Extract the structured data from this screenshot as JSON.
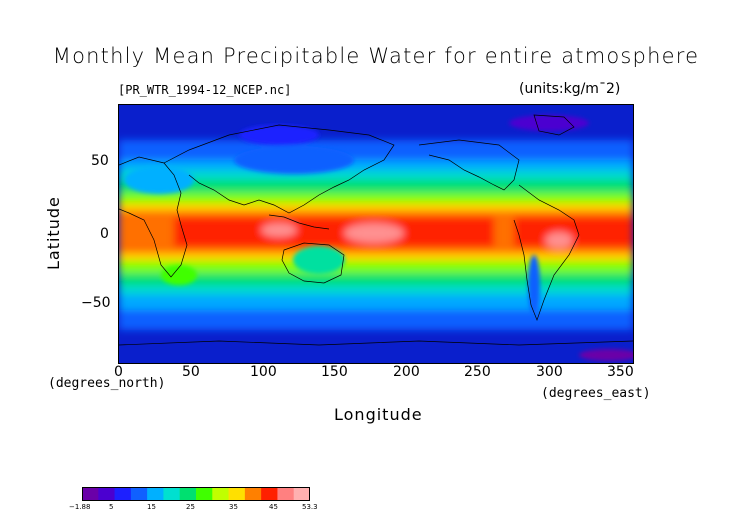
{
  "title": "Monthly Mean Precipitable Water for entire atmosphere",
  "file_label": "[PR_WTR_1994-12_NCEP.nc]",
  "units_label": "(units:kg/m¯2)",
  "axes": {
    "xlabel": "Longitude",
    "ylabel": "Latitude",
    "x_unit_label": "(degrees_east)",
    "y_unit_label": "(degrees_north)",
    "x_ticks": [
      "0",
      "50",
      "100",
      "150",
      "200",
      "250",
      "300",
      "350"
    ],
    "y_ticks": [
      "50",
      "0",
      "−50"
    ]
  },
  "colorbar": {
    "labels": [
      "−1.88",
      "5",
      "15",
      "25",
      "35",
      "45",
      "53.3"
    ],
    "colors": [
      "#6a00a8",
      "#4b00d0",
      "#1d20ff",
      "#1060ff",
      "#00b0ff",
      "#00e0d0",
      "#00e070",
      "#40ff00",
      "#c0ff00",
      "#ffe000",
      "#ff8000",
      "#ff2000",
      "#ff8080",
      "#ffb0b0"
    ]
  },
  "chart_data": {
    "type": "heatmap",
    "title": "Monthly Mean Precipitable Water for entire atmosphere",
    "xlabel": "Longitude",
    "ylabel": "Latitude",
    "xlim": [
      0,
      360
    ],
    "ylim": [
      -90,
      90
    ],
    "value_range": [
      -1.88,
      53.3
    ]
  }
}
